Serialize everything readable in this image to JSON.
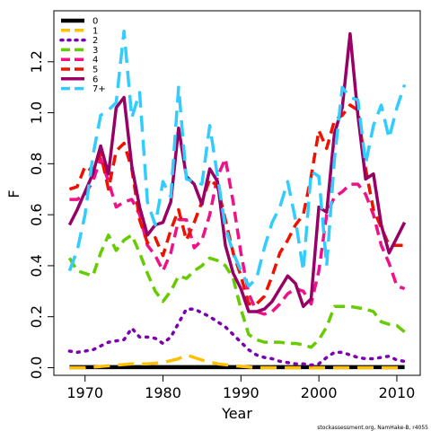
{
  "chart_data": {
    "type": "line",
    "xlabel": "Year",
    "ylabel": "F",
    "xlim": [
      1966,
      2013
    ],
    "ylim": [
      -0.03,
      1.4
    ],
    "xticks": [
      1970,
      1980,
      1990,
      2000,
      2010
    ],
    "yticks": [
      0.0,
      0.2,
      0.4,
      0.6,
      0.8,
      1.0,
      1.2
    ],
    "ytick_labels": [
      "0.0",
      "0.2",
      "0.4",
      "0.6",
      "0.8",
      "1.0",
      "1.2"
    ],
    "grid": false,
    "legend_position": "top-left",
    "credit": "stockassessment.org, NamHake-B, r4055",
    "series": [
      {
        "name": "0",
        "color": "#000000",
        "dash": "solid",
        "width": 4.5,
        "x": [
          1968,
          2011
        ],
        "y": [
          0.002,
          0.002
        ]
      },
      {
        "name": "1",
        "color": "#FFC000",
        "dash": "long",
        "width": 3.5,
        "x": [
          1968,
          1970,
          1972,
          1974,
          1976,
          1978,
          1980,
          1982,
          1983,
          1985,
          1987,
          1989,
          1992,
          1995,
          1998,
          2000,
          2004,
          2008,
          2011
        ],
        "y": [
          0.0,
          0.0,
          0.005,
          0.01,
          0.015,
          0.015,
          0.02,
          0.035,
          0.05,
          0.03,
          0.015,
          0.008,
          0.0,
          0.0,
          0.0,
          0.0,
          0.0,
          0.0,
          0.0
        ]
      },
      {
        "name": "2",
        "color": "#7B00B0",
        "dash": "dot",
        "width": 3.5,
        "x": [
          1968,
          1969,
          1970,
          1971,
          1972,
          1973,
          1974,
          1975,
          1976,
          1977,
          1978,
          1979,
          1980,
          1981,
          1982,
          1983,
          1984,
          1985,
          1986,
          1987,
          1988,
          1989,
          1990,
          1991,
          1992,
          1993,
          1994,
          1995,
          1996,
          1997,
          1998,
          1999,
          2000,
          2001,
          2002,
          2003,
          2004,
          2005,
          2006,
          2007,
          2008,
          2009,
          2010,
          2011
        ],
        "y": [
          0.065,
          0.06,
          0.065,
          0.07,
          0.085,
          0.1,
          0.105,
          0.11,
          0.155,
          0.12,
          0.12,
          0.115,
          0.095,
          0.12,
          0.175,
          0.23,
          0.23,
          0.215,
          0.2,
          0.18,
          0.16,
          0.13,
          0.1,
          0.07,
          0.05,
          0.04,
          0.035,
          0.025,
          0.02,
          0.015,
          0.015,
          0.01,
          0.015,
          0.04,
          0.06,
          0.06,
          0.05,
          0.04,
          0.035,
          0.035,
          0.04,
          0.045,
          0.03,
          0.025
        ]
      },
      {
        "name": "3",
        "color": "#66CC00",
        "dash": "dash",
        "width": 3.5,
        "x": [
          1968,
          1969,
          1970,
          1971,
          1972,
          1973,
          1974,
          1975,
          1976,
          1977,
          1978,
          1979,
          1980,
          1981,
          1982,
          1983,
          1984,
          1985,
          1986,
          1987,
          1988,
          1989,
          1990,
          1991,
          1992,
          1993,
          1994,
          1995,
          1996,
          1997,
          1998,
          1999,
          2000,
          2001,
          2002,
          2003,
          2004,
          2005,
          2006,
          2007,
          2008,
          2009,
          2010,
          2011
        ],
        "y": [
          0.43,
          0.38,
          0.37,
          0.36,
          0.45,
          0.52,
          0.46,
          0.5,
          0.52,
          0.45,
          0.37,
          0.3,
          0.26,
          0.3,
          0.36,
          0.35,
          0.38,
          0.4,
          0.43,
          0.42,
          0.4,
          0.35,
          0.23,
          0.13,
          0.11,
          0.1,
          0.1,
          0.1,
          0.095,
          0.095,
          0.09,
          0.08,
          0.11,
          0.16,
          0.24,
          0.24,
          0.24,
          0.235,
          0.23,
          0.22,
          0.18,
          0.17,
          0.165,
          0.14
        ]
      },
      {
        "name": "4",
        "color": "#EE1188",
        "dash": "dash",
        "width": 3.5,
        "x": [
          1968,
          1969,
          1970,
          1971,
          1972,
          1973,
          1974,
          1975,
          1976,
          1977,
          1978,
          1979,
          1980,
          1981,
          1982,
          1983,
          1984,
          1985,
          1986,
          1987,
          1988,
          1989,
          1990,
          1991,
          1992,
          1993,
          1994,
          1995,
          1996,
          1997,
          1998,
          1999,
          2000,
          2001,
          2002,
          2003,
          2004,
          2005,
          2006,
          2007,
          2008,
          2009,
          2010,
          2011
        ],
        "y": [
          0.66,
          0.66,
          0.68,
          0.73,
          0.82,
          0.73,
          0.63,
          0.65,
          0.66,
          0.6,
          0.48,
          0.44,
          0.38,
          0.45,
          0.58,
          0.58,
          0.47,
          0.5,
          0.6,
          0.75,
          0.82,
          0.65,
          0.45,
          0.29,
          0.22,
          0.21,
          0.22,
          0.25,
          0.29,
          0.31,
          0.3,
          0.25,
          0.38,
          0.6,
          0.67,
          0.69,
          0.72,
          0.72,
          0.68,
          0.6,
          0.48,
          0.41,
          0.32,
          0.31
        ]
      },
      {
        "name": "5",
        "color": "#EE1100",
        "dash": "dash",
        "width": 3.5,
        "x": [
          1968,
          1969,
          1970,
          1971,
          1972,
          1973,
          1974,
          1975,
          1976,
          1977,
          1978,
          1979,
          1980,
          1981,
          1982,
          1983,
          1984,
          1985,
          1986,
          1987,
          1988,
          1989,
          1990,
          1991,
          1992,
          1993,
          1994,
          1995,
          1996,
          1997,
          1998,
          1999,
          2000,
          2001,
          2002,
          2003,
          2004,
          2005,
          2006,
          2007,
          2008,
          2009,
          2010,
          2011
        ],
        "y": [
          0.7,
          0.71,
          0.79,
          0.77,
          0.84,
          0.7,
          0.85,
          0.88,
          0.78,
          0.58,
          0.49,
          0.51,
          0.44,
          0.54,
          0.62,
          0.5,
          0.57,
          0.65,
          0.74,
          0.71,
          0.58,
          0.45,
          0.36,
          0.25,
          0.25,
          0.28,
          0.36,
          0.45,
          0.5,
          0.56,
          0.6,
          0.75,
          0.93,
          0.86,
          0.97,
          0.99,
          1.03,
          1.01,
          0.78,
          0.62,
          0.55,
          0.48,
          0.48,
          0.48
        ]
      },
      {
        "name": "6",
        "color": "#990066",
        "dash": "solid",
        "width": 3.5,
        "x": [
          1968,
          1969,
          1970,
          1971,
          1972,
          1973,
          1974,
          1975,
          1976,
          1977,
          1978,
          1979,
          1980,
          1981,
          1982,
          1983,
          1984,
          1985,
          1986,
          1987,
          1988,
          1989,
          1990,
          1991,
          1992,
          1993,
          1994,
          1995,
          1996,
          1997,
          1998,
          1999,
          2000,
          2001,
          2002,
          2003,
          2004,
          2005,
          2006,
          2007,
          2008,
          2009,
          2010,
          2011
        ],
        "y": [
          0.56,
          0.62,
          0.69,
          0.76,
          0.87,
          0.76,
          1.02,
          1.06,
          0.79,
          0.63,
          0.52,
          0.56,
          0.57,
          0.65,
          0.94,
          0.75,
          0.72,
          0.64,
          0.78,
          0.73,
          0.48,
          0.37,
          0.31,
          0.22,
          0.22,
          0.23,
          0.26,
          0.31,
          0.36,
          0.33,
          0.24,
          0.27,
          0.63,
          0.61,
          0.92,
          1.02,
          1.31,
          0.99,
          0.74,
          0.76,
          0.56,
          0.45,
          0.51,
          0.57
        ]
      },
      {
        "name": "7+",
        "color": "#33CCFF",
        "dash": "long",
        "width": 3.5,
        "x": [
          1968,
          1969,
          1970,
          1971,
          1972,
          1973,
          1974,
          1975,
          1976,
          1977,
          1978,
          1979,
          1980,
          1981,
          1982,
          1983,
          1984,
          1985,
          1986,
          1987,
          1988,
          1989,
          1990,
          1991,
          1992,
          1993,
          1994,
          1995,
          1996,
          1997,
          1998,
          1999,
          2000,
          2001,
          2002,
          2003,
          2004,
          2005,
          2006,
          2007,
          2008,
          2009,
          2010,
          2011
        ],
        "y": [
          0.38,
          0.46,
          0.6,
          0.83,
          0.99,
          1.01,
          1.04,
          1.32,
          0.98,
          1.08,
          0.65,
          0.56,
          0.73,
          0.67,
          1.1,
          0.74,
          0.73,
          0.72,
          0.95,
          0.75,
          0.55,
          0.45,
          0.38,
          0.32,
          0.35,
          0.47,
          0.57,
          0.63,
          0.73,
          0.58,
          0.38,
          0.77,
          0.75,
          0.4,
          0.82,
          1.1,
          1.06,
          1.05,
          0.8,
          0.95,
          1.03,
          0.9,
          1.02,
          1.11
        ]
      }
    ]
  }
}
